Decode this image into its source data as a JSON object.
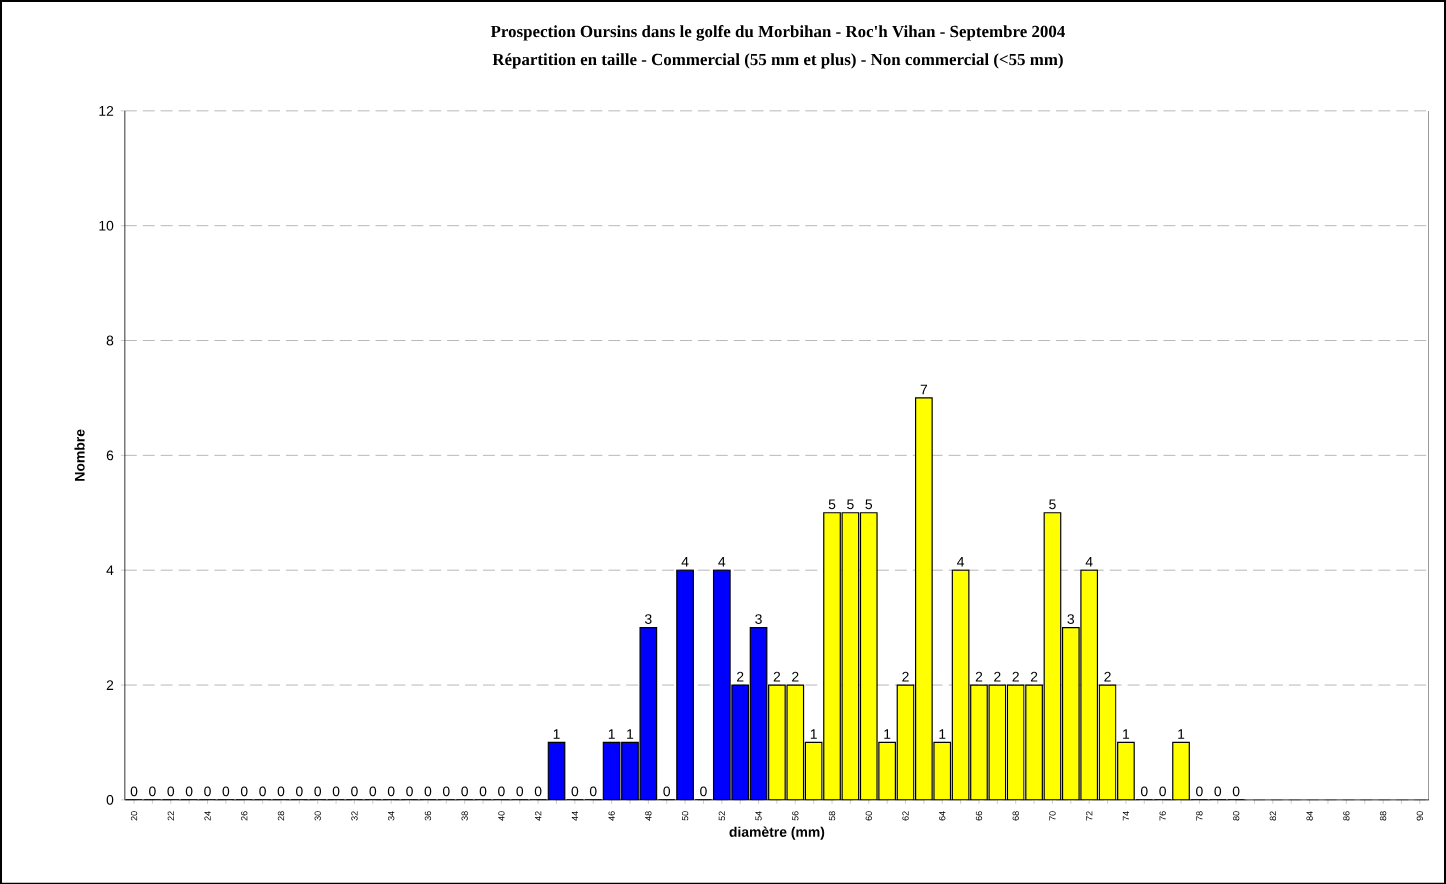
{
  "chart_data": {
    "type": "bar",
    "title": "Prospection Oursins dans le golfe du Morbihan - Roc'h Vihan - Septembre 2004",
    "subtitle": "Répartition en taille - Commercial (55 mm et plus) - Non commercial (<55 mm)",
    "xlabel": "diamètre (mm)",
    "ylabel": "Nombre",
    "categories": [
      "20",
      null,
      "22",
      null,
      "24",
      null,
      "26",
      null,
      "28",
      null,
      "30",
      null,
      "32",
      null,
      "34",
      null,
      "36",
      null,
      "38",
      null,
      "40",
      null,
      "42",
      null,
      "44",
      null,
      "46",
      null,
      "48",
      null,
      "50",
      null,
      "52",
      null,
      "54",
      null,
      "56",
      null,
      "58",
      null,
      "60",
      null,
      "62",
      null,
      "64",
      null,
      "66",
      null,
      "68",
      null,
      "70",
      null,
      "72",
      null,
      "74",
      null,
      "76",
      null,
      "78",
      null,
      "80",
      null,
      "82",
      null,
      "84",
      null,
      "86",
      null,
      "88",
      null,
      "90"
    ],
    "values": [
      0,
      0,
      0,
      0,
      0,
      0,
      0,
      0,
      0,
      0,
      0,
      0,
      0,
      0,
      0,
      0,
      0,
      0,
      0,
      0,
      0,
      0,
      0,
      1,
      0,
      0,
      1,
      1,
      3,
      0,
      4,
      0,
      4,
      2,
      3,
      2,
      2,
      1,
      5,
      5,
      5,
      1,
      2,
      7,
      1,
      4,
      2,
      2,
      2,
      2,
      5,
      3,
      4,
      2,
      1,
      0,
      0,
      1,
      0,
      0,
      0,
      null,
      null,
      null,
      null,
      null,
      null,
      null,
      null,
      null,
      null
    ],
    "colors": [
      "#0000ff",
      "#0000ff",
      "#0000ff",
      "#0000ff",
      "#0000ff",
      "#0000ff",
      "#0000ff",
      "#0000ff",
      "#0000ff",
      "#0000ff",
      "#0000ff",
      "#0000ff",
      "#0000ff",
      "#0000ff",
      "#0000ff",
      "#0000ff",
      "#0000ff",
      "#0000ff",
      "#0000ff",
      "#0000ff",
      "#0000ff",
      "#0000ff",
      "#0000ff",
      "#0000ff",
      "#0000ff",
      "#0000ff",
      "#0000ff",
      "#0000ff",
      "#0000ff",
      "#0000ff",
      "#0000ff",
      "#0000ff",
      "#0000ff",
      "#0000ff",
      "#0000ff",
      "#ffff00",
      "#ffff00",
      "#ffff00",
      "#ffff00",
      "#ffff00",
      "#ffff00",
      "#ffff00",
      "#ffff00",
      "#ffff00",
      "#ffff00",
      "#ffff00",
      "#ffff00",
      "#ffff00",
      "#ffff00",
      "#ffff00",
      "#ffff00",
      "#ffff00",
      "#ffff00",
      "#ffff00",
      "#ffff00",
      "#ffff00",
      "#ffff00",
      "#ffff00",
      "#ffff00",
      "#ffff00",
      "#ffff00",
      "#ffff00",
      "#ffff00",
      "#ffff00",
      "#ffff00",
      "#ffff00",
      "#ffff00",
      "#ffff00",
      "#ffff00",
      "#ffff00",
      "#ffff00"
    ],
    "ylim": [
      0,
      12
    ],
    "yticks": [
      0,
      2,
      4,
      6,
      8,
      10,
      12
    ],
    "grid": "y",
    "line_style": "dashed",
    "data_labels": true
  }
}
